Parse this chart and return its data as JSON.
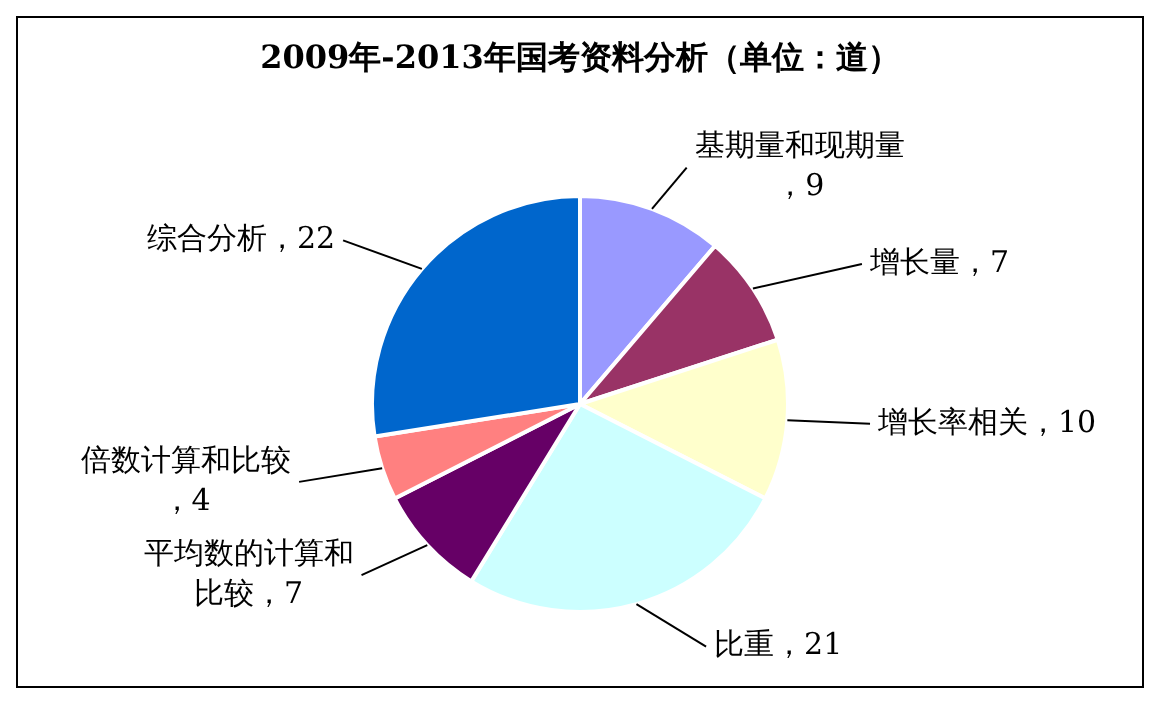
{
  "chart_data": {
    "type": "pie",
    "title": "2009年-2013年国考资料分析（单位：道）",
    "categories": [
      "基期量和现期量",
      "增长量",
      "增长率相关",
      "比重",
      "平均数的计算和比较",
      "倍数计算和比较",
      "综合分析"
    ],
    "values": [
      9,
      7,
      10,
      21,
      7,
      4,
      22
    ],
    "colors": [
      "#9999ff",
      "#993366",
      "#ffffcc",
      "#ccffff",
      "#660066",
      "#ff8080",
      "#0066cc"
    ],
    "value_labels": [
      "，9",
      "，7",
      "，10",
      "，21",
      "，7",
      "，4",
      "，22"
    ],
    "legend": false
  }
}
